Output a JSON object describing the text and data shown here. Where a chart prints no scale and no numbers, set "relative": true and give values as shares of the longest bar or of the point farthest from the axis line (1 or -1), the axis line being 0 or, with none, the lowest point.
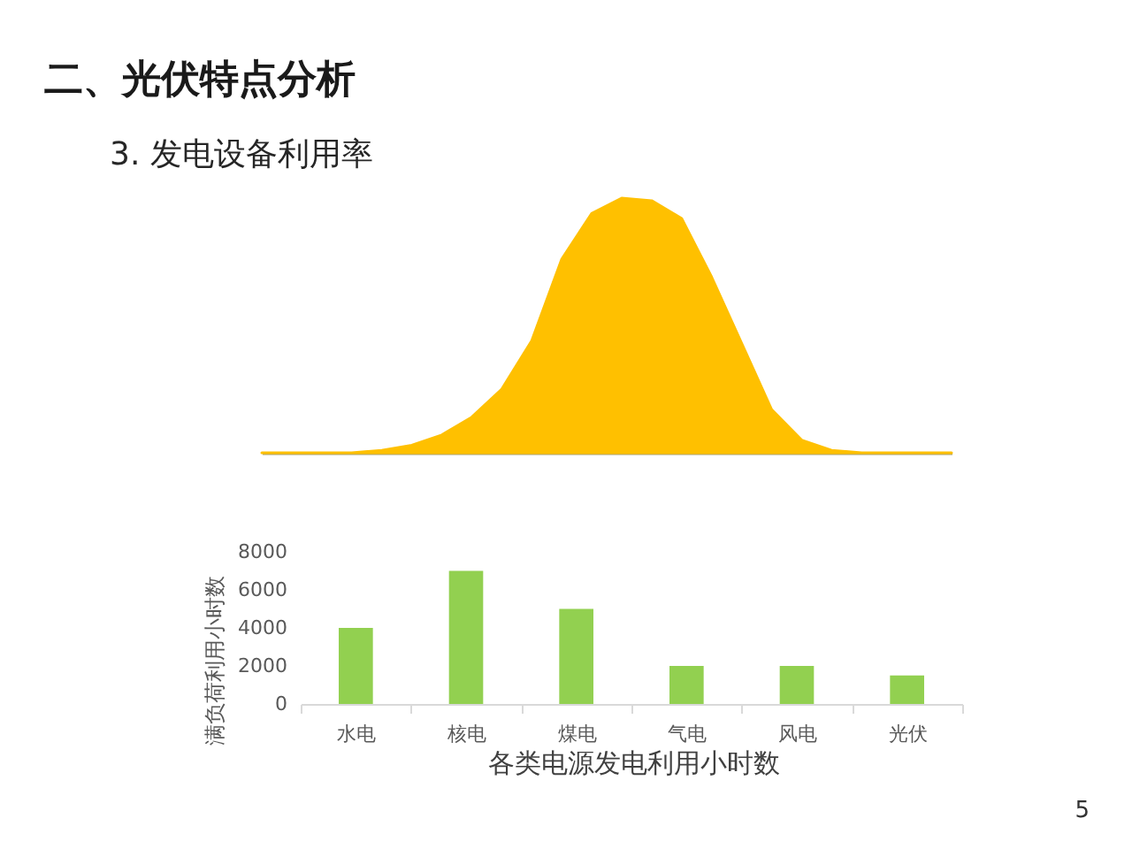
{
  "chart_data": [
    {
      "type": "area",
      "title": "二、光伏特点分析",
      "subtitle": "3. 发电设备利用率",
      "relative": true,
      "color": "#ffc000",
      "categories": [
        null,
        null,
        null,
        null,
        null,
        null,
        null,
        null,
        null,
        null,
        null,
        null,
        null,
        null,
        null,
        null,
        null,
        null,
        null,
        null,
        null,
        null,
        null,
        null
      ],
      "values": [
        0,
        0,
        0,
        0,
        0.01,
        0.03,
        0.07,
        0.14,
        0.25,
        0.44,
        0.76,
        0.94,
        1,
        0.99,
        0.92,
        0.69,
        0.43,
        0.17,
        0.05,
        0.01,
        0,
        0,
        0,
        0
      ]
    },
    {
      "type": "bar",
      "categories": [
        "水电",
        "核电",
        "煤电",
        "气电",
        "风电",
        "光伏"
      ],
      "values": [
        4000,
        7000,
        5000,
        2000,
        2000,
        1500
      ],
      "color": "#92d050",
      "ylim": [
        0,
        8000
      ],
      "yticks": [
        0,
        2000,
        4000,
        6000,
        8000
      ],
      "xlabel": "各类电源发电利用小时数",
      "ylabel": "满负荷利用小时数",
      "grid": false,
      "annotations": [
        "5"
      ]
    }
  ]
}
